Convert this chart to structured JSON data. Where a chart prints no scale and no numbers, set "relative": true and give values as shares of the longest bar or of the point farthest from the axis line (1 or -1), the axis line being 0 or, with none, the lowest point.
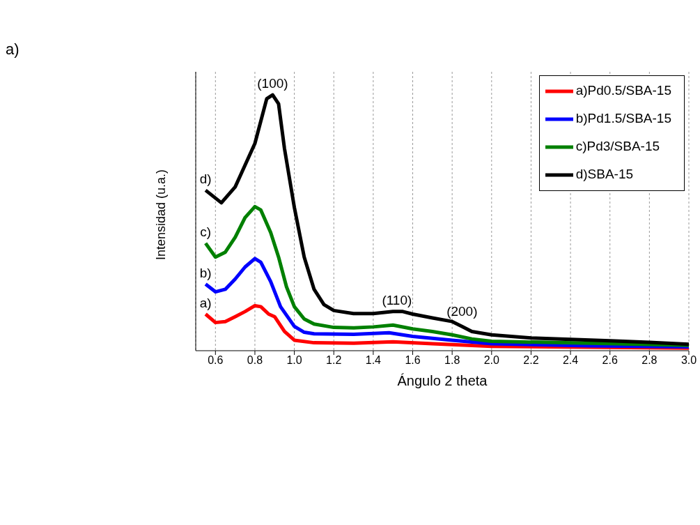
{
  "chart_data": {
    "type": "line",
    "xlabel": "Ángulo 2 theta",
    "ylabel": "Intensidad (u.a.)",
    "relative": true,
    "grid": "x",
    "legend": "top right",
    "marker": "none",
    "line_style": "solid",
    "xlim": [
      0.5,
      3.0
    ],
    "xticks": [
      {
        "value": 0.6,
        "label": "0.6"
      },
      {
        "value": 0.8,
        "label": "0.8"
      },
      {
        "value": 1.0,
        "label": "1.0"
      },
      {
        "value": 1.2,
        "label": "1.2"
      },
      {
        "value": 1.4,
        "label": "1.4"
      },
      {
        "value": 1.6,
        "label": "1.6"
      },
      {
        "value": 1.8,
        "label": "1.8"
      },
      {
        "value": 2.0,
        "label": "2.0"
      },
      {
        "value": 2.2,
        "label": "2.2"
      },
      {
        "value": 2.4,
        "label": "2.4"
      },
      {
        "value": 2.6,
        "label": "2.6"
      },
      {
        "value": 2.8,
        "label": "2.8"
      },
      {
        "value": 3.0,
        "label": "3.0"
      }
    ],
    "series": [
      {
        "name": "a)Pd0.5/SBA-15",
        "color": "#ff0000",
        "x": [
          0.55,
          0.6,
          0.65,
          0.7,
          0.75,
          0.8,
          0.83,
          0.87,
          0.9,
          0.95,
          1.0,
          1.1,
          1.3,
          1.5,
          1.7,
          2.0,
          3.0
        ],
        "values": [
          0.143,
          0.11,
          0.114,
          0.133,
          0.153,
          0.176,
          0.172,
          0.143,
          0.133,
          0.075,
          0.041,
          0.031,
          0.029,
          0.035,
          0.027,
          0.017,
          0.01
        ]
      },
      {
        "name": "b)Pd1.5/SBA-15",
        "color": "#0000ff",
        "x": [
          0.55,
          0.6,
          0.65,
          0.7,
          0.75,
          0.8,
          0.83,
          0.88,
          0.93,
          1.0,
          1.05,
          1.1,
          1.3,
          1.48,
          1.6,
          1.8,
          2.0,
          2.5,
          3.0
        ],
        "values": [
          0.26,
          0.23,
          0.24,
          0.28,
          0.327,
          0.36,
          0.346,
          0.27,
          0.172,
          0.095,
          0.072,
          0.066,
          0.064,
          0.07,
          0.056,
          0.041,
          0.027,
          0.019,
          0.015
        ]
      },
      {
        "name": "c)Pd3/SBA-15",
        "color": "#008000",
        "x": [
          0.55,
          0.6,
          0.65,
          0.7,
          0.75,
          0.8,
          0.83,
          0.88,
          0.92,
          0.96,
          1.0,
          1.05,
          1.1,
          1.2,
          1.3,
          1.4,
          1.5,
          1.6,
          1.7,
          1.8,
          1.9,
          2.0,
          2.5,
          3.0
        ],
        "values": [
          0.42,
          0.366,
          0.385,
          0.443,
          0.52,
          0.563,
          0.55,
          0.462,
          0.366,
          0.25,
          0.172,
          0.124,
          0.104,
          0.091,
          0.089,
          0.093,
          0.1,
          0.085,
          0.075,
          0.062,
          0.046,
          0.037,
          0.029,
          0.021
        ]
      },
      {
        "name": "d)SBA-15",
        "color": "#000000",
        "x": [
          0.55,
          0.63,
          0.7,
          0.8,
          0.86,
          0.89,
          0.92,
          0.95,
          1.0,
          1.05,
          1.1,
          1.15,
          1.2,
          1.3,
          1.4,
          1.5,
          1.55,
          1.6,
          1.7,
          1.8,
          1.85,
          1.9,
          2.0,
          2.2,
          2.4,
          2.6,
          2.8,
          3.0
        ],
        "values": [
          0.627,
          0.578,
          0.64,
          0.81,
          0.985,
          1.0,
          0.965,
          0.79,
          0.56,
          0.366,
          0.24,
          0.18,
          0.157,
          0.145,
          0.145,
          0.153,
          0.153,
          0.143,
          0.128,
          0.114,
          0.095,
          0.075,
          0.062,
          0.05,
          0.044,
          0.039,
          0.033,
          0.025
        ]
      }
    ],
    "annotations": [
      "a)",
      {
        "text": "(100)",
        "x": 0.89,
        "y": 1.0
      },
      {
        "text": "(110)",
        "x": 1.52,
        "y": 0.153
      },
      {
        "text": "(200)",
        "x": 1.85,
        "y": 0.11
      },
      {
        "text": "d)",
        "x": 0.55,
        "y": 0.627
      },
      {
        "text": "c)",
        "x": 0.55,
        "y": 0.42
      },
      {
        "text": "b)",
        "x": 0.55,
        "y": 0.26
      },
      {
        "text": "a)",
        "x": 0.55,
        "y": 0.143
      }
    ]
  }
}
